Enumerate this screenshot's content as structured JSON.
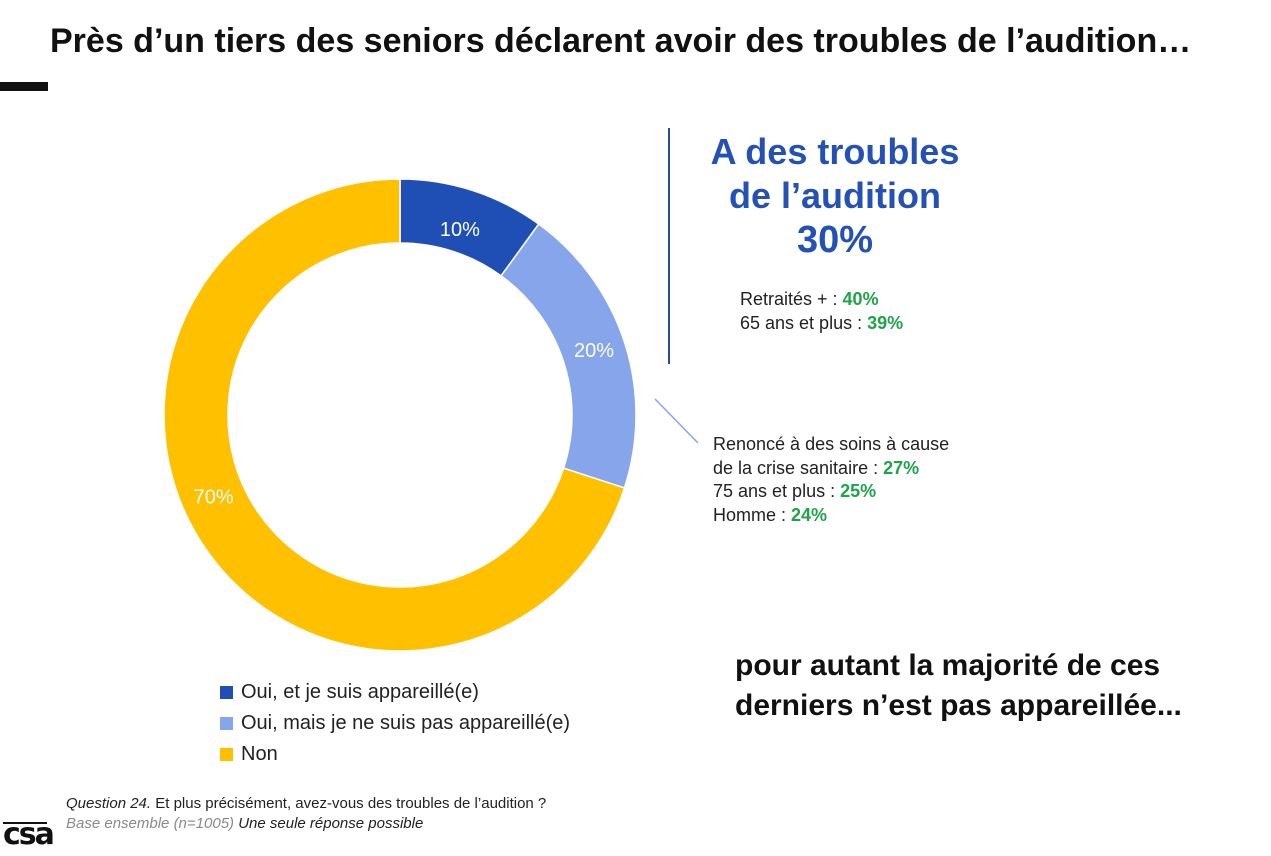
{
  "title": "Près d’un tiers des seniors déclarent avoir des troubles de l’audition…",
  "kpi": {
    "line1": "A des troubles",
    "line2": "de l’audition",
    "value": "30%"
  },
  "sub_stats_top": [
    {
      "label": "Retraités + : ",
      "value": "40%"
    },
    {
      "label": "65 ans et plus : ",
      "value": "39%"
    }
  ],
  "sub_stats_bottom": [
    {
      "label": "Renoncé à des soins à cause",
      "value": ""
    },
    {
      "label": "de la crise sanitaire : ",
      "value": "27%"
    },
    {
      "label": "75 ans et plus : ",
      "value": "25%"
    },
    {
      "label": "Homme : ",
      "value": "24%"
    }
  ],
  "conclusion": {
    "line1": "pour autant la majorité de ces",
    "line2": "derniers n’est pas appareillée..."
  },
  "footnote": {
    "question_label": "Question 24.",
    "question_text": " Et plus précisément, avez-vous des troubles de l’audition ?",
    "base_label": "Base ensemble (n=1005) ",
    "base_note": "Une seule réponse possible"
  },
  "logo_text": "csa",
  "colors": {
    "dark_blue": "#1f4fb5",
    "light_blue": "#86a5ea",
    "yellow": "#ffc000",
    "kpi_blue": "#2451b5",
    "green": "#1fa34a"
  },
  "chart_data": {
    "type": "pie",
    "variant": "donut",
    "title": "",
    "labels": [
      "Oui, et je suis appareillé(e)",
      "Oui, mais je ne suis pas appareillé(e)",
      "Non"
    ],
    "values": [
      10,
      20,
      70
    ],
    "data_labels": [
      "10%",
      "20%",
      "70%"
    ],
    "colors": [
      "#1f4fb5",
      "#86a5ea",
      "#ffc000"
    ],
    "legend_position": "bottom",
    "start_angle": "top, clockwise"
  }
}
